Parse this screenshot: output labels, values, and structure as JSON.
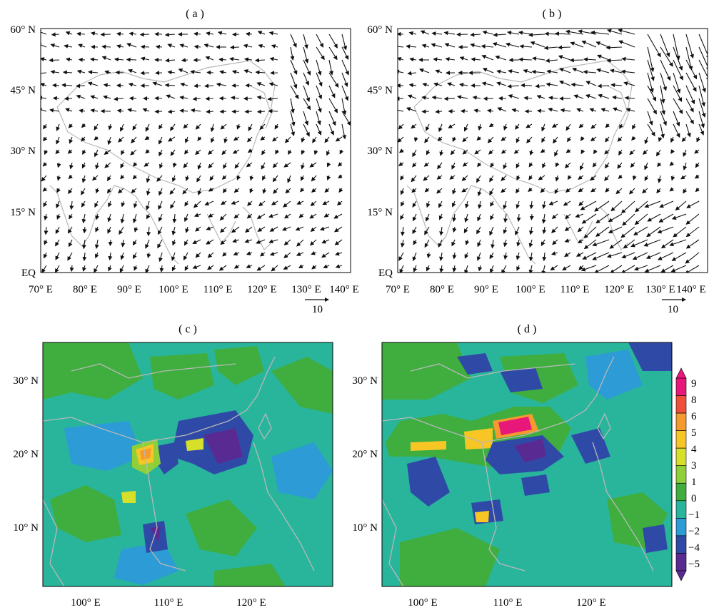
{
  "panels": [
    {
      "id": "a",
      "label": "( a )",
      "kind": "vector"
    },
    {
      "id": "b",
      "label": "( b )",
      "kind": "vector"
    },
    {
      "id": "c",
      "label": "( c )",
      "kind": "contour"
    },
    {
      "id": "d",
      "label": "( d )",
      "kind": "contour"
    }
  ],
  "vector_axes": {
    "x_ticks": [
      "70° E",
      "80° E",
      "90° E",
      "100° E",
      "110° E",
      "120° E",
      "130° E",
      "140° E"
    ],
    "y_ticks": [
      "60° N",
      "45° N",
      "30° N",
      "15° N",
      "EQ"
    ],
    "ref_vector_label": "10"
  },
  "contour_axes": {
    "x_ticks": [
      "100° E",
      "110° E",
      "120° E"
    ],
    "y_ticks": [
      "30° N",
      "20° N",
      "10° N"
    ]
  },
  "colorbar": {
    "labels": [
      "9",
      "8",
      "6",
      "5",
      "4",
      "3",
      "1",
      "0",
      "−1",
      "−2",
      "−4",
      "−5"
    ],
    "colors": [
      "#e8177a",
      "#f0503a",
      "#f59a2e",
      "#f7c625",
      "#d6e02a",
      "#8fcf3a",
      "#3fae3f",
      "#29b59c",
      "#2c9bd6",
      "#2f4aa6",
      "#5a2a93"
    ]
  },
  "colors": {
    "land_outline": "#b8b8b8",
    "arrow": "#111111"
  }
}
